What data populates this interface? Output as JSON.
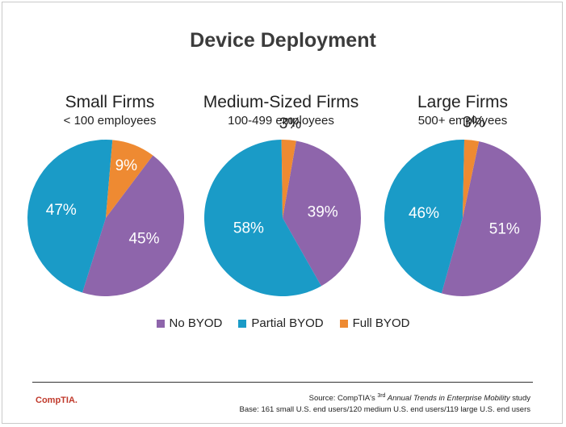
{
  "title": "Device Deployment",
  "chart_data": [
    {
      "type": "pie",
      "title": "Small Firms",
      "subtitle": "< 100 employees",
      "categories": [
        "No BYOD",
        "Partial BYOD",
        "Full BYOD"
      ],
      "values": [
        45,
        47,
        9
      ],
      "labels": [
        "45%",
        "47%",
        "9%"
      ]
    },
    {
      "type": "pie",
      "title": "Medium-Sized Firms",
      "subtitle": "100-499 employees",
      "categories": [
        "No BYOD",
        "Partial BYOD",
        "Full BYOD"
      ],
      "values": [
        39,
        58,
        3
      ],
      "labels": [
        "39%",
        "58%",
        "3%"
      ]
    },
    {
      "type": "pie",
      "title": "Large Firms",
      "subtitle": "500+ employees",
      "categories": [
        "No BYOD",
        "Partial BYOD",
        "Full BYOD"
      ],
      "values": [
        51,
        46,
        3
      ],
      "labels": [
        "51%",
        "46%",
        "3%"
      ]
    }
  ],
  "legend": [
    {
      "label": "No BYOD",
      "color": "#8e65ab"
    },
    {
      "label": "Partial BYOD",
      "color": "#1a9bc7"
    },
    {
      "label": "Full BYOD",
      "color": "#ee8a32"
    }
  ],
  "footer": {
    "logo": "CompTIA.",
    "source_prefix": "Source: CompTIA's ",
    "source_sup": "3rd",
    "source_title": " Annual Trends in Enterprise Mobility",
    "source_suffix": " study",
    "base": "Base: 161 small U.S. end users/120 medium U.S. end users/119 large U.S. end users"
  }
}
